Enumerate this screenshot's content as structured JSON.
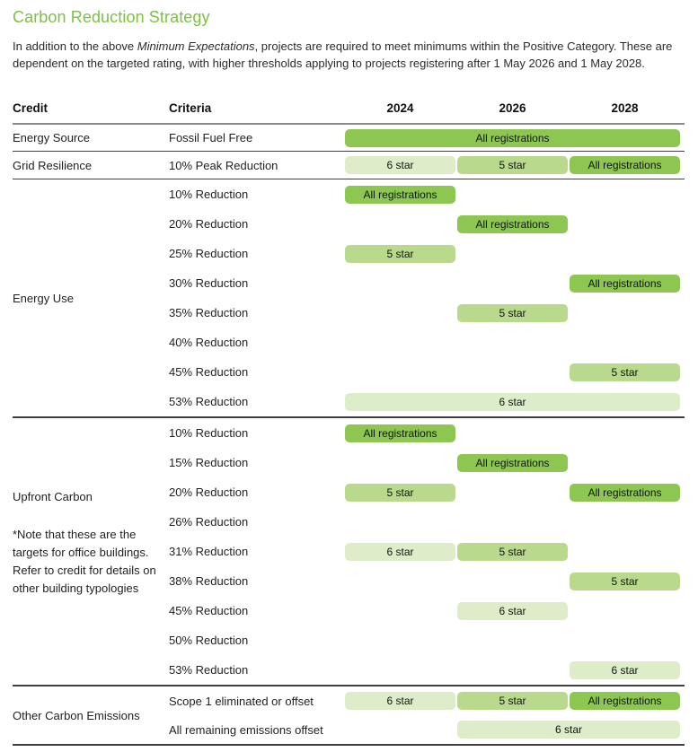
{
  "page": {
    "title": "Carbon Reduction Strategy",
    "intro_before": "In addition to the above ",
    "intro_italic": "Minimum Expectations",
    "intro_after": ", projects are required to meet minimums within the Positive Category. These are dependent on the targeted rating, with higher thresholds applying to projects registering after 1 May 2026 and 1 May 2028."
  },
  "colors": {
    "title_green": "#7CC242",
    "badge_light": "#DDEDCA",
    "badge_medium": "#B9D98D",
    "badge_dark": "#8DC751"
  },
  "table": {
    "headers": {
      "credit": "Credit",
      "criteria": "Criteria",
      "years": [
        "2024",
        "2026",
        "2028"
      ]
    },
    "sections": [
      {
        "credit": "Energy Source",
        "rows": [
          {
            "criteria": "Fossil Fuel Free",
            "badges": [
              {
                "label": "All registrations",
                "level": "dark",
                "col": 0,
                "span": 3
              }
            ]
          }
        ]
      },
      {
        "credit": "Grid Resilience",
        "rows": [
          {
            "criteria": "10% Peak Reduction",
            "badges": [
              {
                "label": "6 star",
                "level": "light",
                "col": 0,
                "span": 1
              },
              {
                "label": "5 star",
                "level": "medium",
                "col": 1,
                "span": 1
              },
              {
                "label": "All registrations",
                "level": "dark",
                "col": 2,
                "span": 1
              }
            ]
          }
        ]
      },
      {
        "credit": "Energy Use",
        "rows": [
          {
            "criteria": "10% Reduction",
            "badges": [
              {
                "label": "All registrations",
                "level": "dark",
                "col": 0,
                "span": 1
              }
            ]
          },
          {
            "criteria": "20% Reduction",
            "badges": [
              {
                "label": "All registrations",
                "level": "dark",
                "col": 1,
                "span": 1
              }
            ]
          },
          {
            "criteria": "25% Reduction",
            "badges": [
              {
                "label": "5 star",
                "level": "medium",
                "col": 0,
                "span": 1
              }
            ]
          },
          {
            "criteria": "30% Reduction",
            "badges": [
              {
                "label": "All registrations",
                "level": "dark",
                "col": 2,
                "span": 1
              }
            ]
          },
          {
            "criteria": "35% Reduction",
            "badges": [
              {
                "label": "5 star",
                "level": "medium",
                "col": 1,
                "span": 1
              }
            ]
          },
          {
            "criteria": "40% Reduction",
            "badges": []
          },
          {
            "criteria": "45% Reduction",
            "badges": [
              {
                "label": "5 star",
                "level": "medium",
                "col": 2,
                "span": 1
              }
            ]
          },
          {
            "criteria": "53% Reduction",
            "badges": [
              {
                "label": "6 star",
                "level": "light",
                "col": 0,
                "span": 3
              }
            ]
          }
        ]
      },
      {
        "credit": "Upfront Carbon",
        "note": "*Note that these are the targets for office buildings. Refer to credit for details on other building typologies",
        "rows": [
          {
            "criteria": "10% Reduction",
            "badges": [
              {
                "label": "All registrations",
                "level": "dark",
                "col": 0,
                "span": 1
              }
            ]
          },
          {
            "criteria": "15% Reduction",
            "badges": [
              {
                "label": "All registrations",
                "level": "dark",
                "col": 1,
                "span": 1
              }
            ]
          },
          {
            "criteria": "20% Reduction",
            "badges": [
              {
                "label": "5 star",
                "level": "medium",
                "col": 0,
                "span": 1
              },
              {
                "label": "All registrations",
                "level": "dark",
                "col": 2,
                "span": 1
              }
            ]
          },
          {
            "criteria": "26% Reduction",
            "badges": []
          },
          {
            "criteria": "31% Reduction",
            "badges": [
              {
                "label": "6 star",
                "level": "light",
                "col": 0,
                "span": 1
              },
              {
                "label": "5 star",
                "level": "medium",
                "col": 1,
                "span": 1
              }
            ]
          },
          {
            "criteria": "38% Reduction",
            "badges": [
              {
                "label": "5 star",
                "level": "medium",
                "col": 2,
                "span": 1
              }
            ]
          },
          {
            "criteria": "45% Reduction",
            "badges": [
              {
                "label": "6 star",
                "level": "light",
                "col": 1,
                "span": 1
              }
            ]
          },
          {
            "criteria": "50% Reduction",
            "badges": []
          },
          {
            "criteria": "53% Reduction",
            "badges": [
              {
                "label": "6 star",
                "level": "light",
                "col": 2,
                "span": 1
              }
            ]
          }
        ]
      },
      {
        "credit": "Other Carbon Emissions",
        "rows": [
          {
            "criteria": "Scope 1 eliminated or offset",
            "badges": [
              {
                "label": "6 star",
                "level": "light",
                "col": 0,
                "span": 1
              },
              {
                "label": "5 star",
                "level": "medium",
                "col": 1,
                "span": 1
              },
              {
                "label": "All registrations",
                "level": "dark",
                "col": 2,
                "span": 1
              }
            ]
          },
          {
            "criteria": "All remaining emissions offset",
            "badges": [
              {
                "label": "6 star",
                "level": "light",
                "col": 1,
                "span": 2
              }
            ]
          }
        ]
      }
    ]
  }
}
